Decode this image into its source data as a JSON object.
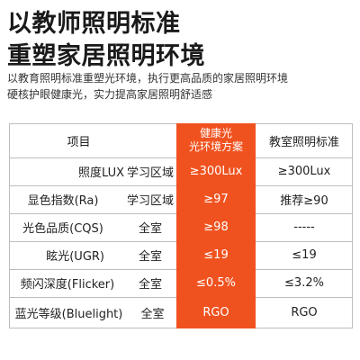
{
  "headline": {
    "line1": "以教师照明标准",
    "line2": "重塑家居照明环境"
  },
  "description": {
    "line1": "以教育照明标准重塑光环境，执行更高品质的家居照明环境",
    "line2": "硬核护眼健康光，实力提高家居照明舒适感"
  },
  "table": {
    "headers": {
      "item": "项目",
      "healthy_line1": "健康光",
      "healthy_line2": "光环境方案",
      "standard": "教室照明标准"
    },
    "rows": [
      {
        "item": "照度LUX",
        "area": "学习区域",
        "healthy": "≥300Lux",
        "standard": "≥300Lux"
      },
      {
        "item": "显色指数(Ra)",
        "area": "学习区域",
        "healthy": "≥97",
        "standard": "推荐≥90"
      },
      {
        "item": "光色品质(CQS)",
        "area": "全室",
        "healthy": "≥98",
        "standard": "-----"
      },
      {
        "item": "眩光(UGR)",
        "area": "全室",
        "healthy": "≤19",
        "standard": "≤19"
      },
      {
        "item": "频闪深度(Flicker)",
        "area": "全室",
        "healthy": "≤0.5%",
        "standard": "≤3.2%"
      },
      {
        "item": "蓝光等级(Bluelight)",
        "area": "全室",
        "healthy": "RGO",
        "standard": "RGO"
      }
    ]
  },
  "colors": {
    "accent": "#f0521f",
    "grid": "#bdbdbd"
  }
}
